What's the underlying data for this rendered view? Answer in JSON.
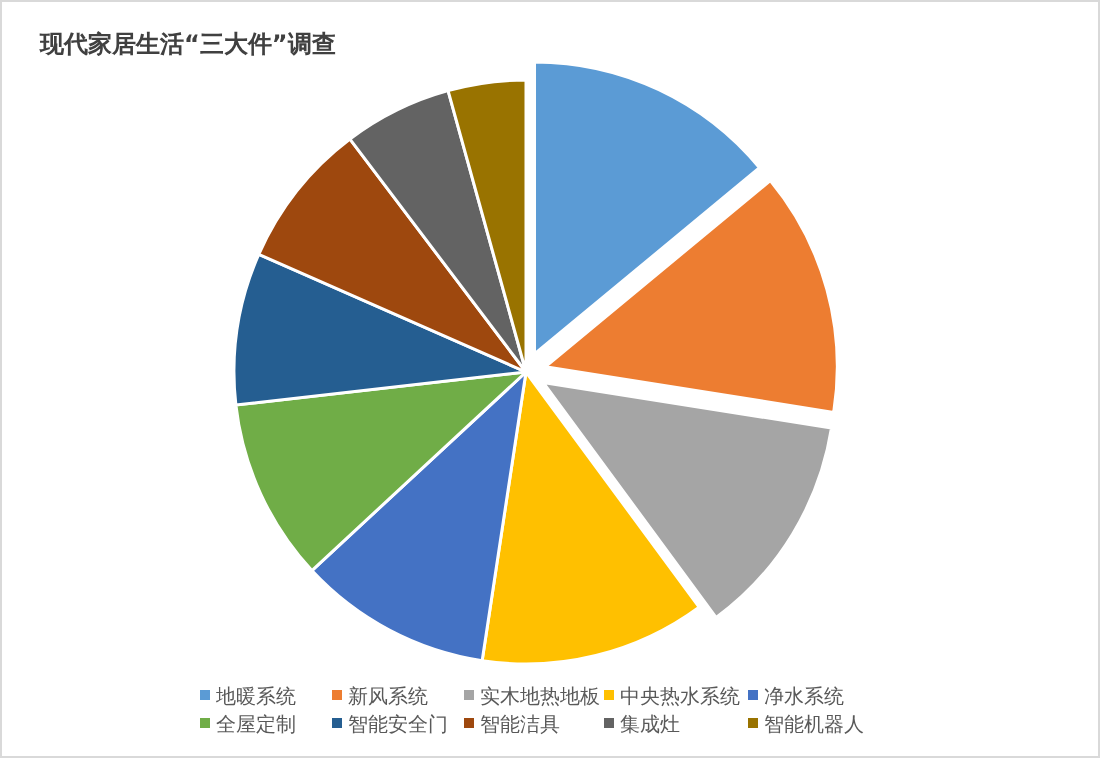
{
  "chart_data": {
    "type": "pie",
    "title": "现代家居生活“三大件”调查",
    "categories": [
      "地暖系统",
      "新风系统",
      "实木地热地板",
      "中央热水系统",
      "净水系统",
      "全屋定制",
      "智能安全门",
      "智能洁具",
      "集成灶",
      "智能机器人"
    ],
    "values": [
      14,
      13.5,
      12.4,
      12.5,
      10.7,
      10.1,
      8.4,
      8.1,
      6,
      4.3
    ],
    "colors": [
      "#5b9bd5",
      "#ed7d31",
      "#a5a5a5",
      "#ffc000",
      "#4472c4",
      "#70ad47",
      "#255e91",
      "#9e480e",
      "#636363",
      "#997300"
    ],
    "legend": "bottom"
  }
}
